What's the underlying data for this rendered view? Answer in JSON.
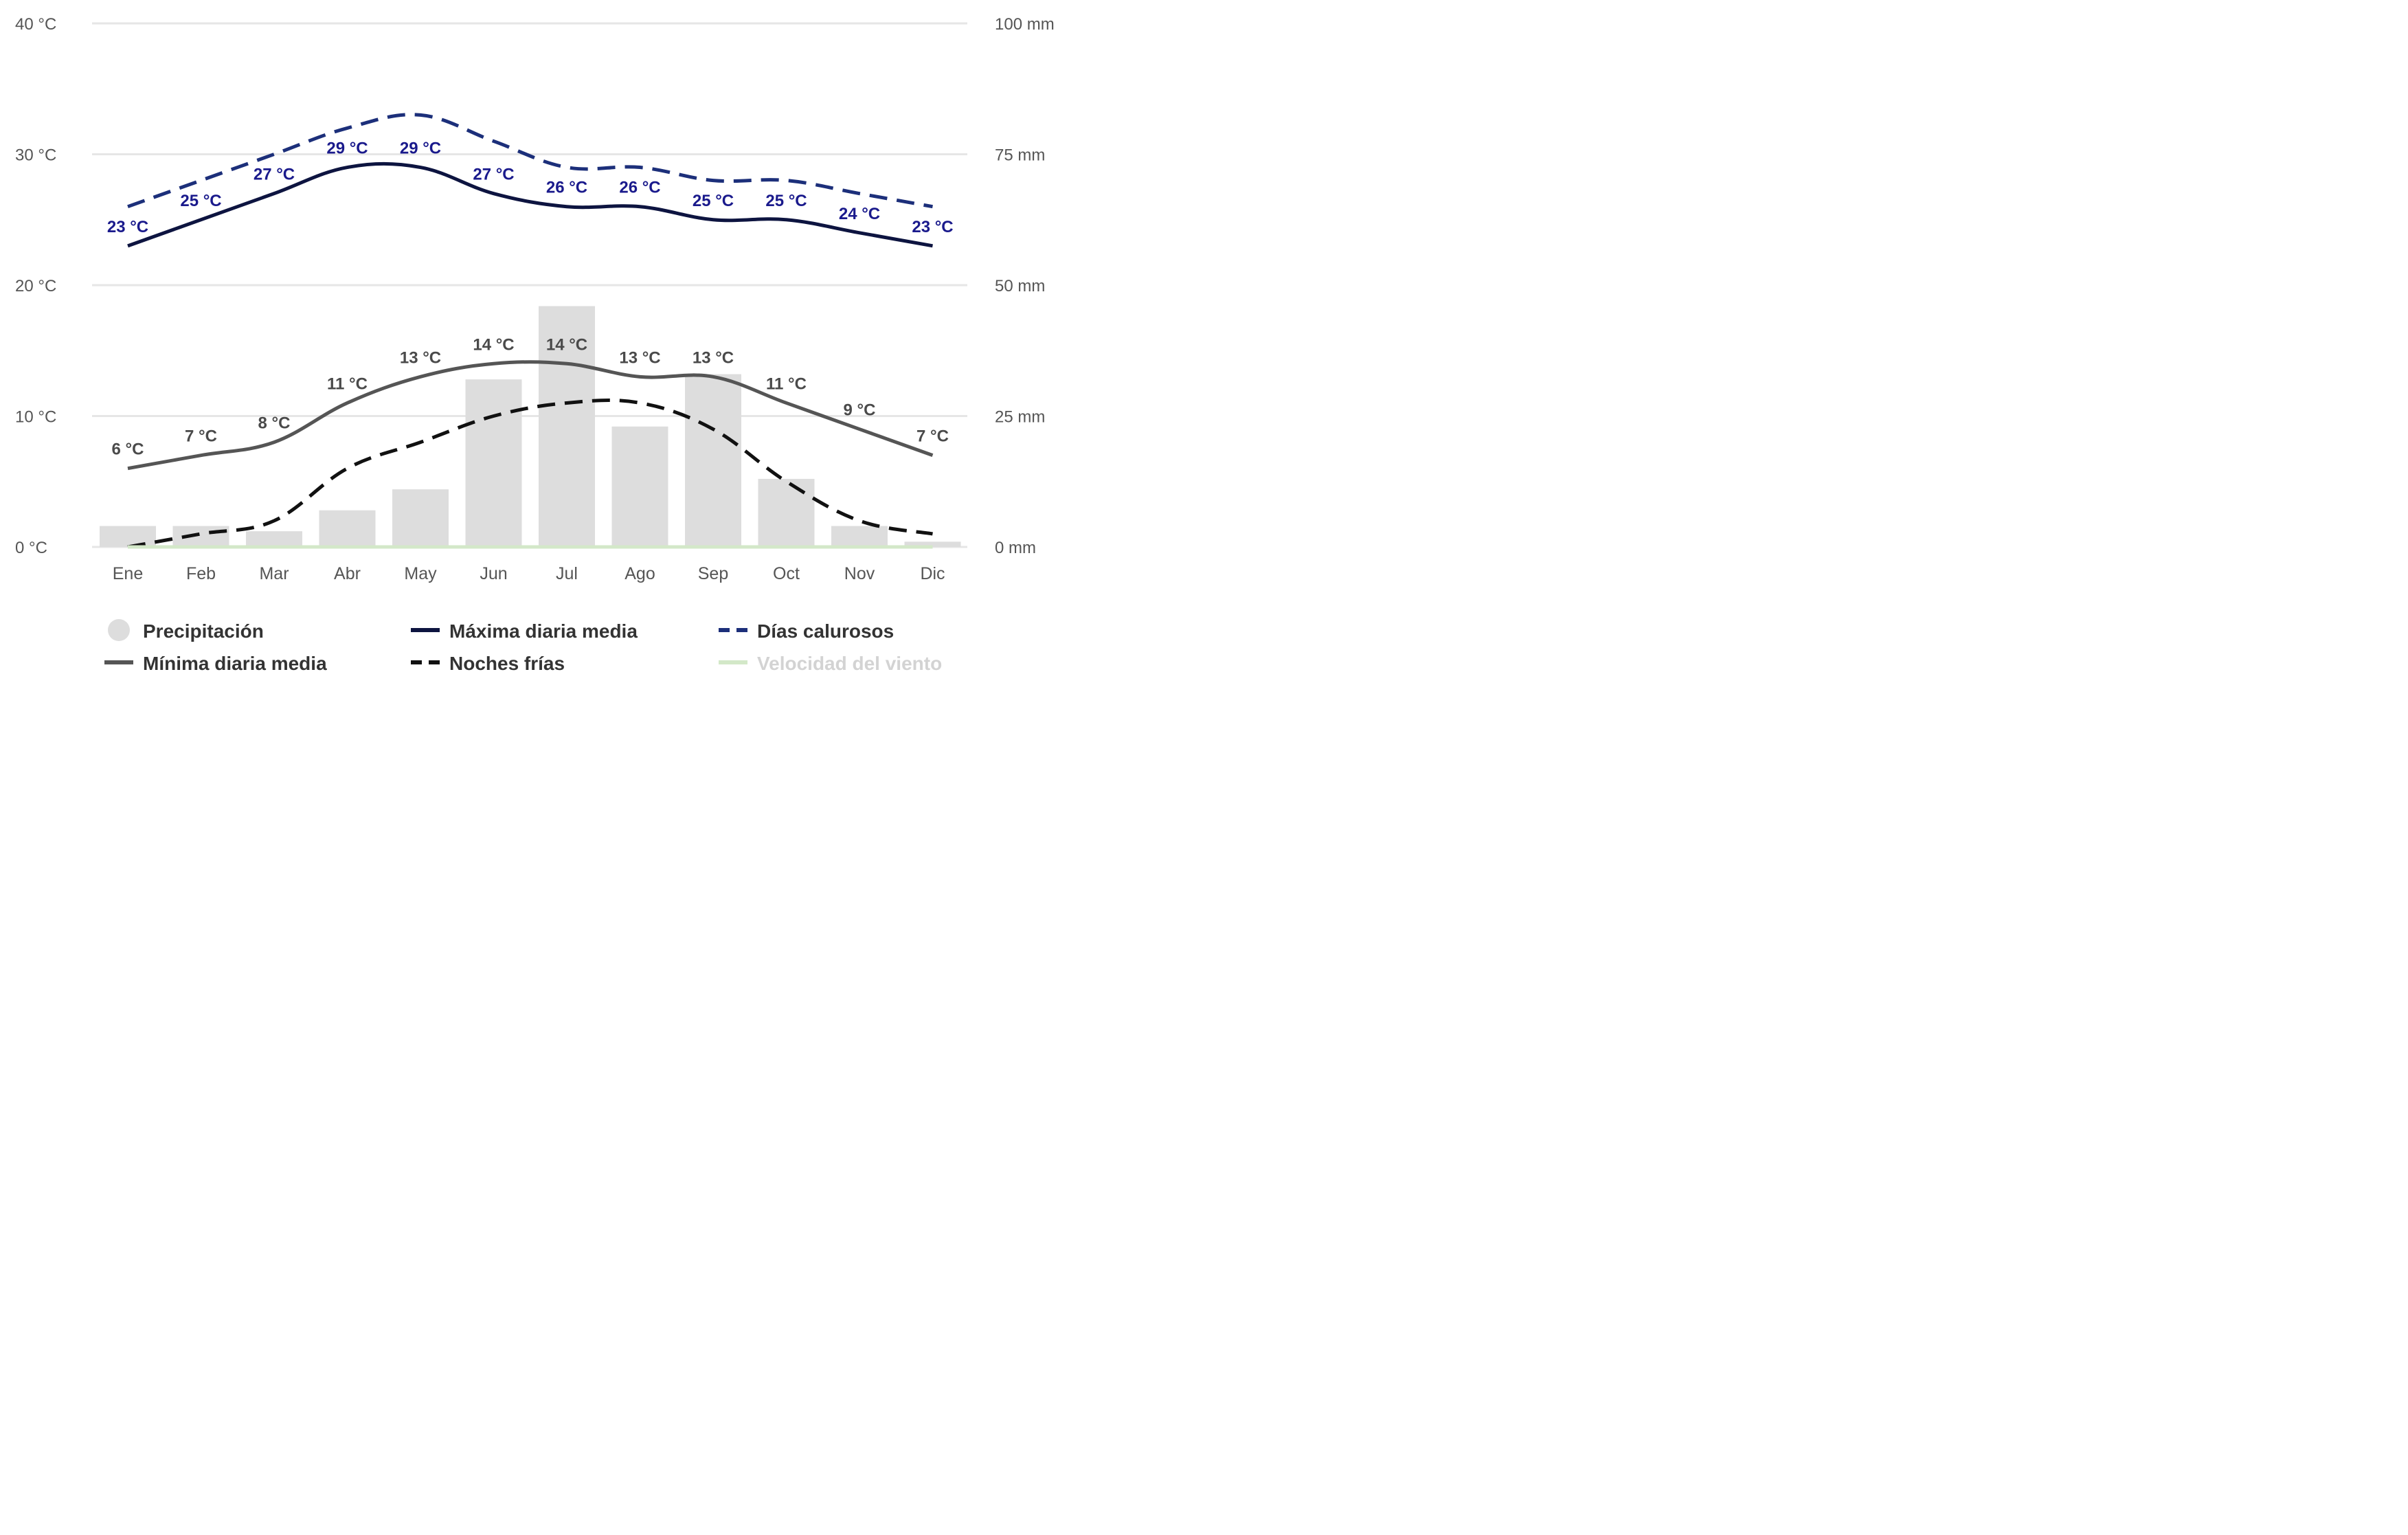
{
  "chart_data": {
    "type": "bar+line",
    "categories": [
      "Ene",
      "Feb",
      "Mar",
      "Abr",
      "May",
      "Jun",
      "Jul",
      "Ago",
      "Sep",
      "Oct",
      "Nov",
      "Dic"
    ],
    "y_left": {
      "min": 0,
      "max": 40,
      "ticks": [
        0,
        10,
        20,
        30,
        40
      ],
      "tick_labels": [
        "0 °C",
        "10 °C",
        "20 °C",
        "30 °C",
        "40 °C"
      ]
    },
    "y_right": {
      "min": 0,
      "max": 100,
      "ticks": [
        0,
        25,
        50,
        75,
        100
      ],
      "tick_labels": [
        "0 mm",
        "25 mm",
        "50 mm",
        "75 mm",
        "100 mm"
      ]
    },
    "grid": true,
    "legend_position": "bottom",
    "series": [
      {
        "name": "Precipitación",
        "kind": "bar",
        "axis": "right",
        "color": "#dddddd",
        "values": [
          4,
          4,
          3,
          7,
          11,
          32,
          46,
          23,
          33,
          13,
          4,
          1
        ]
      },
      {
        "name": "Máxima diaria media",
        "kind": "line",
        "axis": "left",
        "color": "#0d1440",
        "dash": "solid",
        "values": [
          23,
          25,
          27,
          29,
          29,
          27,
          26,
          26,
          25,
          25,
          24,
          23
        ],
        "labels": [
          "23 °C",
          "25 °C",
          "27 °C",
          "29 °C",
          "29 °C",
          "27 °C",
          "26 °C",
          "26 °C",
          "25 °C",
          "25 °C",
          "24 °C",
          "23 °C"
        ]
      },
      {
        "name": "Días calurosos",
        "kind": "line",
        "axis": "left",
        "color": "#1c2f7a",
        "dash": "dashed",
        "values": [
          26,
          28,
          30,
          32,
          33,
          31,
          29,
          29,
          28,
          28,
          27,
          26
        ]
      },
      {
        "name": "Mínima diaria media",
        "kind": "line",
        "axis": "left",
        "color": "#555555",
        "dash": "solid",
        "values": [
          6,
          7,
          8,
          11,
          13,
          14,
          14,
          13,
          13,
          11,
          9,
          7
        ],
        "labels": [
          "6 °C",
          "7 °C",
          "8 °C",
          "11 °C",
          "13 °C",
          "14 °C",
          "14 °C",
          "13 °C",
          "13 °C",
          "11 °C",
          "9 °C",
          "7 °C"
        ]
      },
      {
        "name": "Noches frías",
        "kind": "line",
        "axis": "left",
        "color": "#111111",
        "dash": "dashed",
        "values": [
          0,
          1,
          2,
          6,
          8,
          10,
          11,
          11,
          9,
          5,
          2,
          1
        ]
      },
      {
        "name": "Velocidad del viento",
        "kind": "line",
        "axis": "left",
        "color": "#d3e8c8",
        "dash": "solid",
        "values": [
          0,
          0,
          0,
          0,
          0,
          0,
          0,
          0,
          0,
          0,
          0,
          0
        ]
      }
    ]
  }
}
